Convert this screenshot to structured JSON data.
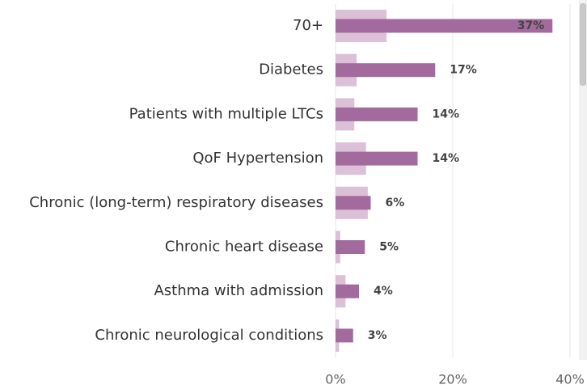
{
  "chart_data": {
    "type": "bar",
    "orientation": "horizontal",
    "categories": [
      "70+",
      "Diabetes",
      "Patients with multiple LTCs",
      "QoF Hypertension",
      "Chronic (long-term) respiratory diseases",
      "Chronic heart disease",
      "Asthma with admission",
      "Chronic neurological conditions"
    ],
    "series": [
      {
        "color": "#dcc0d8",
        "values": [
          8.7,
          3.6,
          3.2,
          5.2,
          5.5,
          0.8,
          1.7,
          0.6
        ]
      },
      {
        "color": "#a36a9e",
        "values": [
          37,
          17,
          14,
          14,
          6,
          5,
          4,
          3
        ],
        "value_labels": [
          "37%",
          "17%",
          "14%",
          "14%",
          "6%",
          "5%",
          "4%",
          "3%"
        ]
      }
    ],
    "xlim": [
      0,
      40
    ],
    "xticks": [
      {
        "value": 0,
        "label": "0%"
      },
      {
        "value": 20,
        "label": "20%"
      },
      {
        "value": 40,
        "label": "40%"
      }
    ],
    "grid": true
  }
}
